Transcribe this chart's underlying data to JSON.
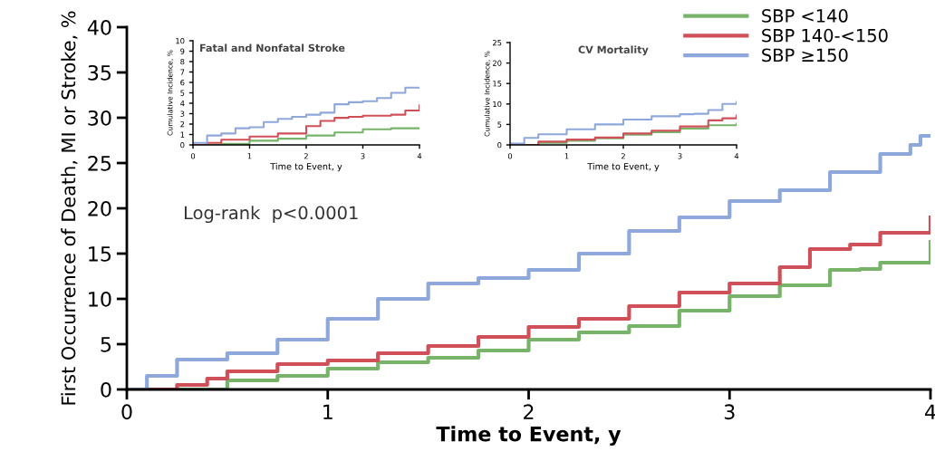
{
  "chart_data": [
    {
      "type": "step",
      "xlabel": "Time to Event, y",
      "ylabel": "First Occurrence of Death, MI or Stroke, %",
      "xlim": [
        0,
        4
      ],
      "ylim": [
        0,
        40
      ],
      "xticks": [
        0,
        1,
        2,
        3,
        4
      ],
      "yticks": [
        0,
        5,
        10,
        15,
        20,
        25,
        30,
        35,
        40
      ],
      "legend": "top right",
      "grid": false,
      "annotations": [
        "Log-rank  p<0.0001"
      ],
      "series": [
        {
          "name": "SBP <140",
          "color": "#78b36a",
          "x": [
            0,
            0.3,
            0.5,
            0.75,
            1,
            1.25,
            1.5,
            1.75,
            2,
            2.25,
            2.5,
            2.75,
            3,
            3.25,
            3.5,
            3.65,
            3.75,
            4
          ],
          "values": [
            0,
            0,
            1,
            1.5,
            2.3,
            3,
            3.5,
            4.3,
            5.5,
            6.3,
            7,
            8.7,
            10.3,
            11.5,
            13.2,
            13.3,
            14,
            16.3
          ]
        },
        {
          "name": "SBP 140-<150",
          "color": "#d0505a",
          "x": [
            0,
            0.25,
            0.4,
            0.5,
            0.75,
            1,
            1.25,
            1.5,
            1.75,
            2,
            2.25,
            2.5,
            2.75,
            3,
            3.25,
            3.4,
            3.6,
            3.75,
            4
          ],
          "values": [
            0,
            0.5,
            1.2,
            2,
            2.8,
            3.2,
            4,
            4.8,
            5.8,
            6.9,
            7.8,
            9.2,
            10.7,
            11.7,
            13.5,
            15.5,
            16,
            17.3,
            19
          ]
        },
        {
          "name": "SBP ≥150",
          "color": "#8fa8dc",
          "x": [
            0,
            0.1,
            0.25,
            0.5,
            0.75,
            1,
            1.25,
            1.5,
            1.75,
            2,
            2.25,
            2.5,
            2.75,
            3,
            3.25,
            3.5,
            3.75,
            3.9,
            3.95,
            4
          ],
          "values": [
            0,
            1.5,
            3.3,
            4,
            5.5,
            7.8,
            10,
            11.7,
            12.3,
            13.2,
            15,
            17.5,
            19,
            20.8,
            22,
            24,
            26,
            27,
            28,
            28
          ]
        }
      ]
    },
    {
      "type": "step",
      "title": "Fatal and Nonfatal Stroke",
      "xlabel": "Time to Event, y",
      "ylabel": "Cumulative Incidence, %",
      "xlim": [
        0,
        4
      ],
      "ylim": [
        0,
        10
      ],
      "xticks": [
        0,
        1,
        2,
        3,
        4
      ],
      "yticks": [
        0,
        1,
        2,
        3,
        4,
        5,
        6,
        7,
        8,
        9,
        10
      ],
      "grid": false,
      "series": [
        {
          "color": "#78b36a",
          "x": [
            0,
            0.5,
            1,
            1.5,
            2,
            2.5,
            3,
            3.5,
            4
          ],
          "values": [
            0,
            0.1,
            0.4,
            0.6,
            0.9,
            1.2,
            1.5,
            1.6,
            1.6
          ]
        },
        {
          "color": "#d0505a",
          "x": [
            0,
            0.25,
            0.5,
            1,
            1.5,
            2,
            2.25,
            2.5,
            2.75,
            3,
            3.5,
            3.75,
            4
          ],
          "values": [
            0,
            0.2,
            0.5,
            0.8,
            1.1,
            1.8,
            2.3,
            2.6,
            2.7,
            2.8,
            2.9,
            3.3,
            3.8
          ]
        },
        {
          "color": "#8fa8dc",
          "x": [
            0,
            0.25,
            0.5,
            0.75,
            1,
            1.25,
            1.5,
            1.75,
            2,
            2.25,
            2.5,
            2.75,
            3,
            3.25,
            3.5,
            3.75,
            4
          ],
          "values": [
            0.2,
            0.9,
            1.1,
            1.6,
            1.7,
            2.2,
            2.5,
            2.7,
            2.9,
            3.1,
            3.9,
            4.1,
            4.2,
            4.5,
            5,
            5.5,
            5.5
          ]
        }
      ]
    },
    {
      "type": "step",
      "title": "CV Mortality",
      "xlabel": "Time to Event, y",
      "ylabel": "Cumulative Incidence, %",
      "xlim": [
        0,
        4
      ],
      "ylim": [
        0,
        25
      ],
      "xticks": [
        0,
        1,
        2,
        3,
        4
      ],
      "yticks": [
        0,
        5,
        10,
        15,
        20,
        25
      ],
      "grid": false,
      "series": [
        {
          "color": "#78b36a",
          "x": [
            0,
            0.5,
            1,
            1.5,
            2,
            2.5,
            3,
            3.5,
            4
          ],
          "values": [
            0,
            0.5,
            1,
            1.6,
            2.5,
            3.1,
            4,
            4.8,
            5.2
          ]
        },
        {
          "color": "#d0505a",
          "x": [
            0,
            0.5,
            1,
            1.5,
            2,
            2.5,
            3,
            3.5,
            3.75,
            4
          ],
          "values": [
            0,
            0.8,
            1.3,
            1.8,
            2.8,
            3.5,
            4.5,
            6,
            6.5,
            7.2
          ]
        },
        {
          "color": "#8fa8dc",
          "x": [
            0,
            0.25,
            0.5,
            1,
            1.5,
            2,
            2.5,
            3,
            3.25,
            3.5,
            3.75,
            4
          ],
          "values": [
            0.3,
            1.7,
            2.6,
            3.8,
            5,
            6.2,
            7,
            7.5,
            7.6,
            8.5,
            10,
            10.5
          ]
        }
      ]
    }
  ]
}
